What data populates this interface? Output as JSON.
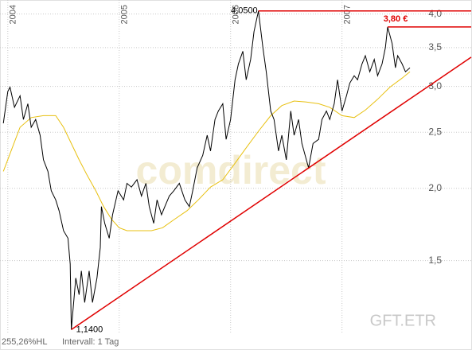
{
  "chart_data": {
    "type": "line",
    "log_scale": true,
    "grid": true,
    "xlim": [
      2003.93,
      2008.16
    ],
    "ylim": [
      1.12,
      4.23
    ],
    "xticks": [
      2004,
      2005,
      2006,
      2007
    ],
    "yticks": [
      {
        "value": 1.5,
        "label": "1,5"
      },
      {
        "value": 2,
        "label": "2,0"
      },
      {
        "value": 2.5,
        "label": "2,5"
      },
      {
        "value": 3,
        "label": "3,0"
      },
      {
        "value": 3.5,
        "label": "3,5"
      },
      {
        "value": 4,
        "label": "4,0"
      }
    ],
    "series": [
      {
        "color": "#000000",
        "x": [
          2003.96,
          2004.0,
          2004.02,
          2004.06,
          2004.11,
          2004.14,
          2004.18,
          2004.21,
          2004.25,
          2004.29,
          2004.32,
          2004.36,
          2004.39,
          2004.43,
          2004.46,
          2004.5,
          2004.54,
          2004.56,
          2004.57,
          2004.61,
          2004.64,
          2004.66,
          2004.69,
          2004.73,
          2004.76,
          2004.8,
          2004.83,
          2004.84,
          2004.87,
          2004.91,
          2004.94,
          2004.99,
          2005.04,
          2005.07,
          2005.11,
          2005.16,
          2005.2,
          2005.24,
          2005.27,
          2005.31,
          2005.34,
          2005.38,
          2005.41,
          2005.45,
          2005.49,
          2005.54,
          2005.59,
          2005.63,
          2005.66,
          2005.7,
          2005.75,
          2005.79,
          2005.82,
          2005.86,
          2005.89,
          2005.93,
          2005.96,
          2006.0,
          2006.04,
          2006.07,
          2006.11,
          2006.14,
          2006.18,
          2006.21,
          2006.25,
          2006.29,
          2006.32,
          2006.36,
          2006.39,
          2006.43,
          2006.46,
          2006.5,
          2006.54,
          2006.57,
          2006.61,
          2006.64,
          2006.68,
          2006.7,
          2006.74,
          2006.79,
          2006.82,
          2006.86,
          2006.89,
          2006.93,
          2006.96,
          2007.0,
          2007.04,
          2007.07,
          2007.11,
          2007.14,
          2007.18,
          2007.21,
          2007.25,
          2007.29,
          2007.32,
          2007.36,
          2007.39,
          2007.41,
          2007.45,
          2007.48,
          2007.5,
          2007.54,
          2007.57,
          2007.61
        ],
        "values": [
          2.59,
          2.94,
          2.99,
          2.76,
          2.89,
          2.63,
          2.8,
          2.55,
          2.63,
          2.47,
          2.24,
          2.14,
          1.98,
          1.91,
          1.83,
          1.69,
          1.64,
          1.48,
          1.14,
          1.4,
          1.31,
          1.44,
          1.27,
          1.44,
          1.27,
          1.4,
          1.58,
          1.86,
          1.74,
          1.64,
          1.8,
          1.98,
          1.91,
          2.04,
          2.01,
          2.07,
          1.94,
          2.04,
          1.86,
          1.74,
          1.91,
          1.8,
          1.86,
          1.94,
          1.98,
          2.04,
          1.91,
          1.86,
          1.98,
          2.17,
          2.28,
          2.47,
          2.32,
          2.63,
          2.72,
          2.8,
          2.43,
          2.63,
          3.08,
          3.28,
          3.45,
          3.08,
          3.34,
          3.73,
          4.05,
          3.5,
          3.18,
          2.72,
          2.63,
          2.32,
          2.47,
          2.24,
          2.72,
          2.47,
          2.63,
          2.39,
          2.24,
          2.17,
          2.39,
          2.43,
          2.63,
          2.72,
          2.63,
          2.8,
          3.08,
          2.72,
          2.89,
          3.04,
          3.13,
          3.08,
          3.28,
          3.39,
          3.18,
          3.34,
          3.13,
          3.28,
          3.5,
          3.8,
          3.56,
          3.23,
          3.39,
          3.28,
          3.18,
          3.23
        ]
      },
      {
        "color": "#e8c010",
        "x": [
          2003.96,
          2004.04,
          2004.11,
          2004.21,
          2004.32,
          2004.43,
          2004.5,
          2004.57,
          2004.64,
          2004.71,
          2004.79,
          2004.86,
          2004.93,
          2005.0,
          2005.07,
          2005.18,
          2005.29,
          2005.39,
          2005.5,
          2005.61,
          2005.71,
          2005.82,
          2005.93,
          2006.04,
          2006.14,
          2006.25,
          2006.36,
          2006.46,
          2006.57,
          2006.68,
          2006.79,
          2006.89,
          2007.0,
          2007.11,
          2007.21,
          2007.32,
          2007.43,
          2007.54,
          2007.61
        ],
        "values": [
          2.14,
          2.35,
          2.55,
          2.65,
          2.67,
          2.67,
          2.55,
          2.39,
          2.24,
          2.11,
          1.98,
          1.86,
          1.77,
          1.71,
          1.69,
          1.69,
          1.69,
          1.71,
          1.77,
          1.83,
          1.91,
          2.01,
          2.07,
          2.21,
          2.35,
          2.51,
          2.67,
          2.78,
          2.83,
          2.82,
          2.8,
          2.76,
          2.67,
          2.65,
          2.73,
          2.85,
          2.99,
          3.1,
          3.18
        ]
      }
    ],
    "trendline": {
      "color": "#e00000",
      "x": [
        2004.57,
        2008.16
      ],
      "values": [
        1.14,
        3.37
      ]
    },
    "levels": [
      {
        "color": "#e00000",
        "x": 2006.25,
        "value": 4.05
      },
      {
        "color": "#e00000",
        "x": 2007.41,
        "value": 3.8
      }
    ],
    "annotations": [
      {
        "label": "4,0500",
        "x": 2006.25,
        "value": 4.05,
        "color": "#000000"
      },
      {
        "label": "3,80 €",
        "x": 2007.41,
        "value": 3.8,
        "color": "#e00000"
      },
      {
        "label": "1,1400",
        "x": 2004.57,
        "value": 1.14,
        "color": "#000000"
      }
    ],
    "watermark": "comdirect",
    "symbol": "GFT.ETR",
    "footer": [
      "255,26%HL",
      "Intervall: 1 Tag"
    ]
  }
}
